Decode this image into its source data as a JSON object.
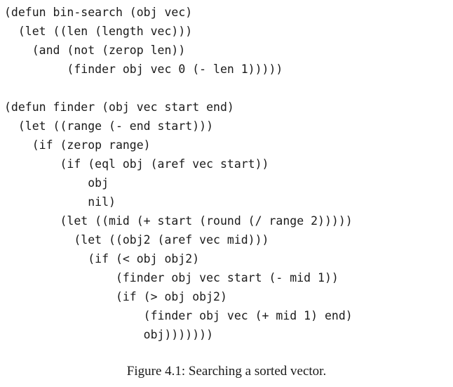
{
  "code": {
    "lines": [
      "(defun bin-search (obj vec)",
      "  (let ((len (length vec)))",
      "    (and (not (zerop len))",
      "         (finder obj vec 0 (- len 1)))))",
      "",
      "(defun finder (obj vec start end)",
      "  (let ((range (- end start)))",
      "    (if (zerop range)",
      "        (if (eql obj (aref vec start))",
      "            obj",
      "            nil)",
      "        (let ((mid (+ start (round (/ range 2)))))",
      "          (let ((obj2 (aref vec mid)))",
      "            (if (< obj obj2)",
      "                (finder obj vec start (- mid 1))",
      "                (if (> obj obj2)",
      "                    (finder obj vec (+ mid 1) end)",
      "                    obj)))))))"
    ]
  },
  "caption": {
    "text": "Figure 4.1: Searching a sorted vector."
  }
}
